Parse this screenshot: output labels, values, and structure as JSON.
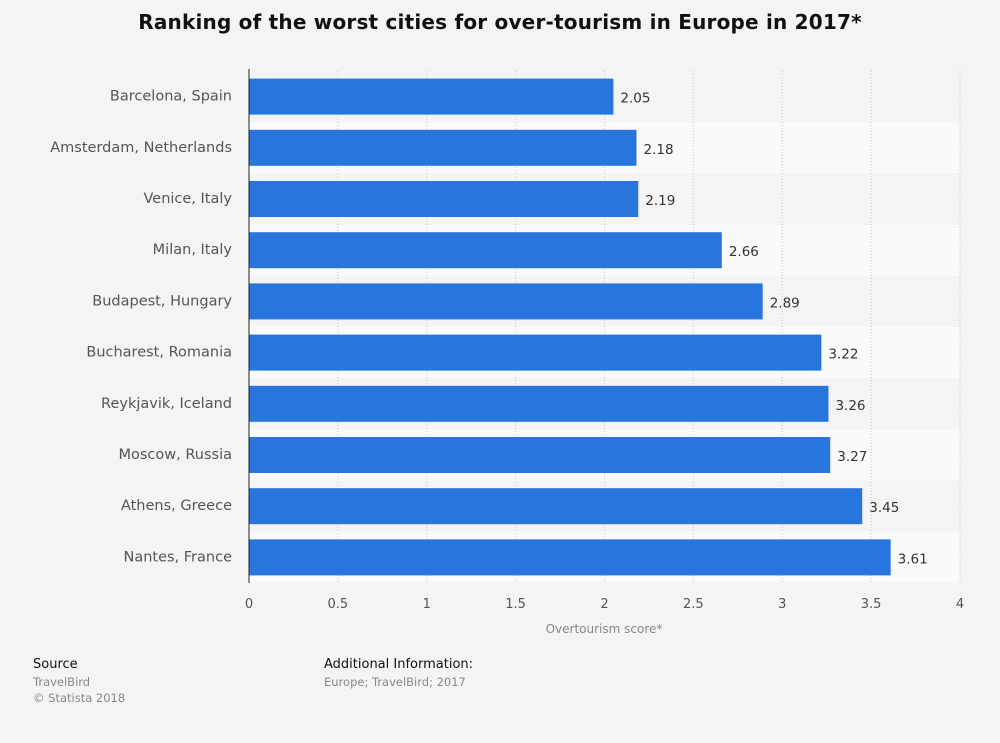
{
  "chart_data": {
    "type": "bar",
    "orientation": "horizontal",
    "title": "Ranking of the worst cities for over-tourism in Europe in 2017*",
    "xlabel": "Overtourism score*",
    "ylabel": "",
    "xlim": [
      0,
      4
    ],
    "xticks": [
      "0",
      "0.5",
      "1",
      "1.5",
      "2",
      "2.5",
      "3",
      "3.5",
      "4"
    ],
    "categories": [
      "Barcelona, Spain",
      "Amsterdam, Netherlands",
      "Venice, Italy",
      "Milan, Italy",
      "Budapest, Hungary",
      "Bucharest, Romania",
      "Reykjavik, Iceland",
      "Moscow, Russia",
      "Athens, Greece",
      "Nantes, France"
    ],
    "values": [
      2.05,
      2.18,
      2.19,
      2.66,
      2.89,
      3.22,
      3.26,
      3.27,
      3.45,
      3.61
    ],
    "value_labels": [
      "2.05",
      "2.18",
      "2.19",
      "2.66",
      "2.89",
      "3.22",
      "3.26",
      "3.27",
      "3.45",
      "3.61"
    ],
    "bar_color": "#2876dd",
    "grid": true
  },
  "footer": {
    "source_heading": "Source",
    "source_lines": [
      "TravelBird",
      "© Statista 2018"
    ],
    "info_heading": "Additional Information:",
    "info_lines": [
      "Europe; TravelBird; 2017"
    ]
  }
}
